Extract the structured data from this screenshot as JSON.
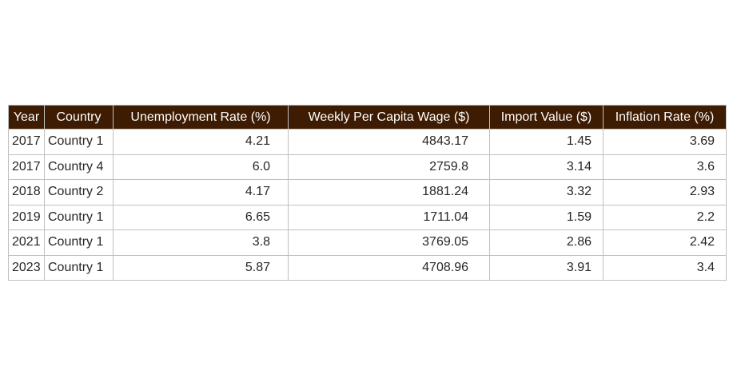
{
  "chart_data": {
    "type": "table",
    "columns": [
      "Year",
      "Country",
      "Unemployment Rate (%)",
      "Weekly Per Capita Wage ($)",
      "Import Value ($)",
      "Inflation Rate (%)"
    ],
    "rows": [
      [
        "2017",
        "Country 1",
        "4.21",
        "4843.17",
        "1.45",
        "3.69"
      ],
      [
        "2017",
        "Country 4",
        "6.0",
        "2759.8",
        "3.14",
        "3.6"
      ],
      [
        "2018",
        "Country 2",
        "4.17",
        "1881.24",
        "3.32",
        "2.93"
      ],
      [
        "2019",
        "Country 1",
        "6.65",
        "1711.04",
        "1.59",
        "2.2"
      ],
      [
        "2021",
        "Country 1",
        "3.8",
        "3769.05",
        "2.86",
        "2.42"
      ],
      [
        "2023",
        "Country 1",
        "5.87",
        "4708.96",
        "3.91",
        "3.4"
      ]
    ],
    "header_color": "#3e1c03",
    "header_text_color": "#ffffff",
    "border_color": "#c0c0c0",
    "text_color": "#262626"
  }
}
